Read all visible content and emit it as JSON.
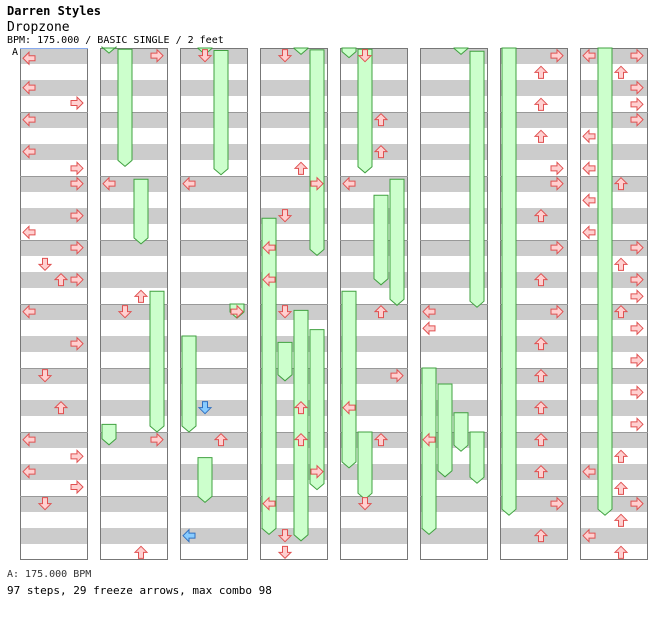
{
  "header": {
    "artist": "Darren Styles",
    "title": "Dropzone",
    "meta": "BPM: 175.000 / BASIC SINGLE / 2 feet"
  },
  "section_label": "A",
  "footer": {
    "bpm": "A: 175.000 BPM",
    "summary": "97 steps, 29 freeze arrows, max combo 98"
  },
  "colors": {
    "stripe": "#cccccc",
    "lane_border": "#777777",
    "arrow_fill": "#ffd0d0",
    "arrow_stroke": "#e05050",
    "freeze_fill": "#ccffcc",
    "freeze_stroke": "#40a040",
    "shock_fill": "#88ccff",
    "shock_stroke": "#3070c0",
    "marker": "#88aaee"
  },
  "freezes": [
    [
      1,
      0.0,
      0.08
    ],
    [
      1,
      0.02,
      1.85
    ],
    [
      1,
      2.05,
      3.06
    ],
    [
      1,
      3.8,
      6.0
    ],
    [
      1,
      5.88,
      6.2
    ],
    [
      2,
      0.0,
      0.1
    ],
    [
      2,
      0.04,
      1.98
    ],
    [
      2,
      4.0,
      4.22
    ],
    [
      2,
      4.5,
      6.0
    ],
    [
      2,
      6.4,
      7.1
    ],
    [
      3,
      0.0,
      0.1
    ],
    [
      3,
      0.03,
      3.24
    ],
    [
      3,
      2.66,
      7.6
    ],
    [
      3,
      4.6,
      5.2
    ],
    [
      3,
      4.1,
      7.7
    ],
    [
      3,
      4.4,
      6.9
    ],
    [
      4,
      0.0,
      0.15
    ],
    [
      4,
      0.02,
      1.95
    ],
    [
      4,
      2.3,
      3.7
    ],
    [
      4,
      2.05,
      4.02
    ],
    [
      4,
      3.8,
      6.56
    ],
    [
      4,
      6.0,
      7.05
    ],
    [
      5,
      0.0,
      0.1
    ],
    [
      5,
      0.05,
      4.05
    ],
    [
      5,
      5.0,
      7.6
    ],
    [
      5,
      5.25,
      6.7
    ],
    [
      5,
      5.7,
      6.3
    ],
    [
      5,
      6.0,
      6.8
    ],
    [
      6,
      0.0,
      7.3
    ],
    [
      7,
      0.0,
      7.3
    ]
  ],
  "arrows": [
    [
      0,
      0.16,
      "left"
    ],
    [
      0,
      0.62,
      "left"
    ],
    [
      0,
      1.12,
      "left"
    ],
    [
      0,
      1.62,
      "left"
    ],
    [
      0,
      2.88,
      "left"
    ],
    [
      0,
      4.12,
      "left"
    ],
    [
      0,
      6.12,
      "left"
    ],
    [
      0,
      6.62,
      "left"
    ],
    [
      0,
      0.86,
      "right"
    ],
    [
      0,
      1.88,
      "right"
    ],
    [
      0,
      2.12,
      "right"
    ],
    [
      0,
      2.62,
      "right"
    ],
    [
      0,
      3.12,
      "right"
    ],
    [
      0,
      3.62,
      "right"
    ],
    [
      0,
      4.62,
      "right"
    ],
    [
      0,
      6.38,
      "right"
    ],
    [
      0,
      6.86,
      "right"
    ],
    [
      0,
      3.38,
      "down"
    ],
    [
      0,
      5.12,
      "down"
    ],
    [
      0,
      7.12,
      "down"
    ],
    [
      0,
      3.62,
      "up"
    ],
    [
      0,
      5.62,
      "up"
    ],
    [
      1,
      0.12,
      "right"
    ],
    [
      1,
      2.12,
      "left"
    ],
    [
      1,
      3.88,
      "up"
    ],
    [
      1,
      4.12,
      "down"
    ],
    [
      1,
      6.12,
      "right"
    ],
    [
      1,
      7.88,
      "up"
    ],
    [
      2,
      0.12,
      "down"
    ],
    [
      2,
      2.12,
      "left"
    ],
    [
      2,
      6.12,
      "up"
    ],
    [
      2,
      5.62,
      "down_blue"
    ],
    [
      2,
      7.62,
      "left_blue"
    ],
    [
      2,
      4.12,
      "right"
    ],
    [
      3,
      0.12,
      "down"
    ],
    [
      3,
      1.88,
      "up"
    ],
    [
      3,
      2.12,
      "right"
    ],
    [
      3,
      2.62,
      "down"
    ],
    [
      3,
      3.12,
      "left"
    ],
    [
      3,
      3.62,
      "left"
    ],
    [
      3,
      4.12,
      "down"
    ],
    [
      3,
      5.62,
      "up"
    ],
    [
      3,
      6.12,
      "up"
    ],
    [
      3,
      6.62,
      "right"
    ],
    [
      3,
      7.12,
      "left"
    ],
    [
      3,
      7.62,
      "down"
    ],
    [
      3,
      7.88,
      "down"
    ],
    [
      4,
      0.12,
      "down"
    ],
    [
      4,
      1.12,
      "up"
    ],
    [
      4,
      1.62,
      "up"
    ],
    [
      4,
      2.12,
      "left"
    ],
    [
      4,
      4.12,
      "up"
    ],
    [
      4,
      5.12,
      "right"
    ],
    [
      4,
      5.62,
      "left"
    ],
    [
      4,
      6.12,
      "up"
    ],
    [
      4,
      7.12,
      "down"
    ],
    [
      5,
      4.12,
      "left"
    ],
    [
      5,
      4.38,
      "left"
    ],
    [
      5,
      6.12,
      "left"
    ],
    [
      6,
      0.12,
      "right"
    ],
    [
      6,
      0.38,
      "up"
    ],
    [
      6,
      0.88,
      "up"
    ],
    [
      6,
      1.38,
      "up"
    ],
    [
      6,
      1.88,
      "right"
    ],
    [
      6,
      2.12,
      "right"
    ],
    [
      6,
      2.62,
      "up"
    ],
    [
      6,
      3.12,
      "right"
    ],
    [
      6,
      3.62,
      "up"
    ],
    [
      6,
      4.12,
      "right"
    ],
    [
      6,
      4.62,
      "up"
    ],
    [
      6,
      5.12,
      "up"
    ],
    [
      6,
      5.62,
      "up"
    ],
    [
      6,
      6.12,
      "up"
    ],
    [
      6,
      6.62,
      "up"
    ],
    [
      6,
      7.12,
      "right"
    ],
    [
      6,
      7.62,
      "up"
    ],
    [
      7,
      0.12,
      "left"
    ],
    [
      7,
      0.38,
      "up"
    ],
    [
      7,
      0.88,
      "right"
    ],
    [
      7,
      1.38,
      "left"
    ],
    [
      7,
      1.88,
      "left"
    ],
    [
      7,
      2.12,
      "up"
    ],
    [
      7,
      2.38,
      "left"
    ],
    [
      7,
      2.88,
      "left"
    ],
    [
      7,
      3.38,
      "up"
    ],
    [
      7,
      3.88,
      "right"
    ],
    [
      7,
      4.12,
      "up"
    ],
    [
      7,
      4.38,
      "right"
    ],
    [
      7,
      4.88,
      "right"
    ],
    [
      7,
      5.38,
      "right"
    ],
    [
      7,
      5.88,
      "right"
    ],
    [
      7,
      6.38,
      "up"
    ],
    [
      7,
      6.62,
      "left"
    ],
    [
      7,
      6.88,
      "up"
    ],
    [
      7,
      7.12,
      "right"
    ],
    [
      7,
      7.38,
      "up"
    ],
    [
      7,
      7.62,
      "left"
    ],
    [
      7,
      7.88,
      "up"
    ],
    [
      7,
      0.12,
      "right"
    ],
    [
      7,
      0.62,
      "right"
    ],
    [
      7,
      1.12,
      "right"
    ],
    [
      7,
      3.62,
      "right"
    ],
    [
      7,
      3.12,
      "right"
    ]
  ]
}
